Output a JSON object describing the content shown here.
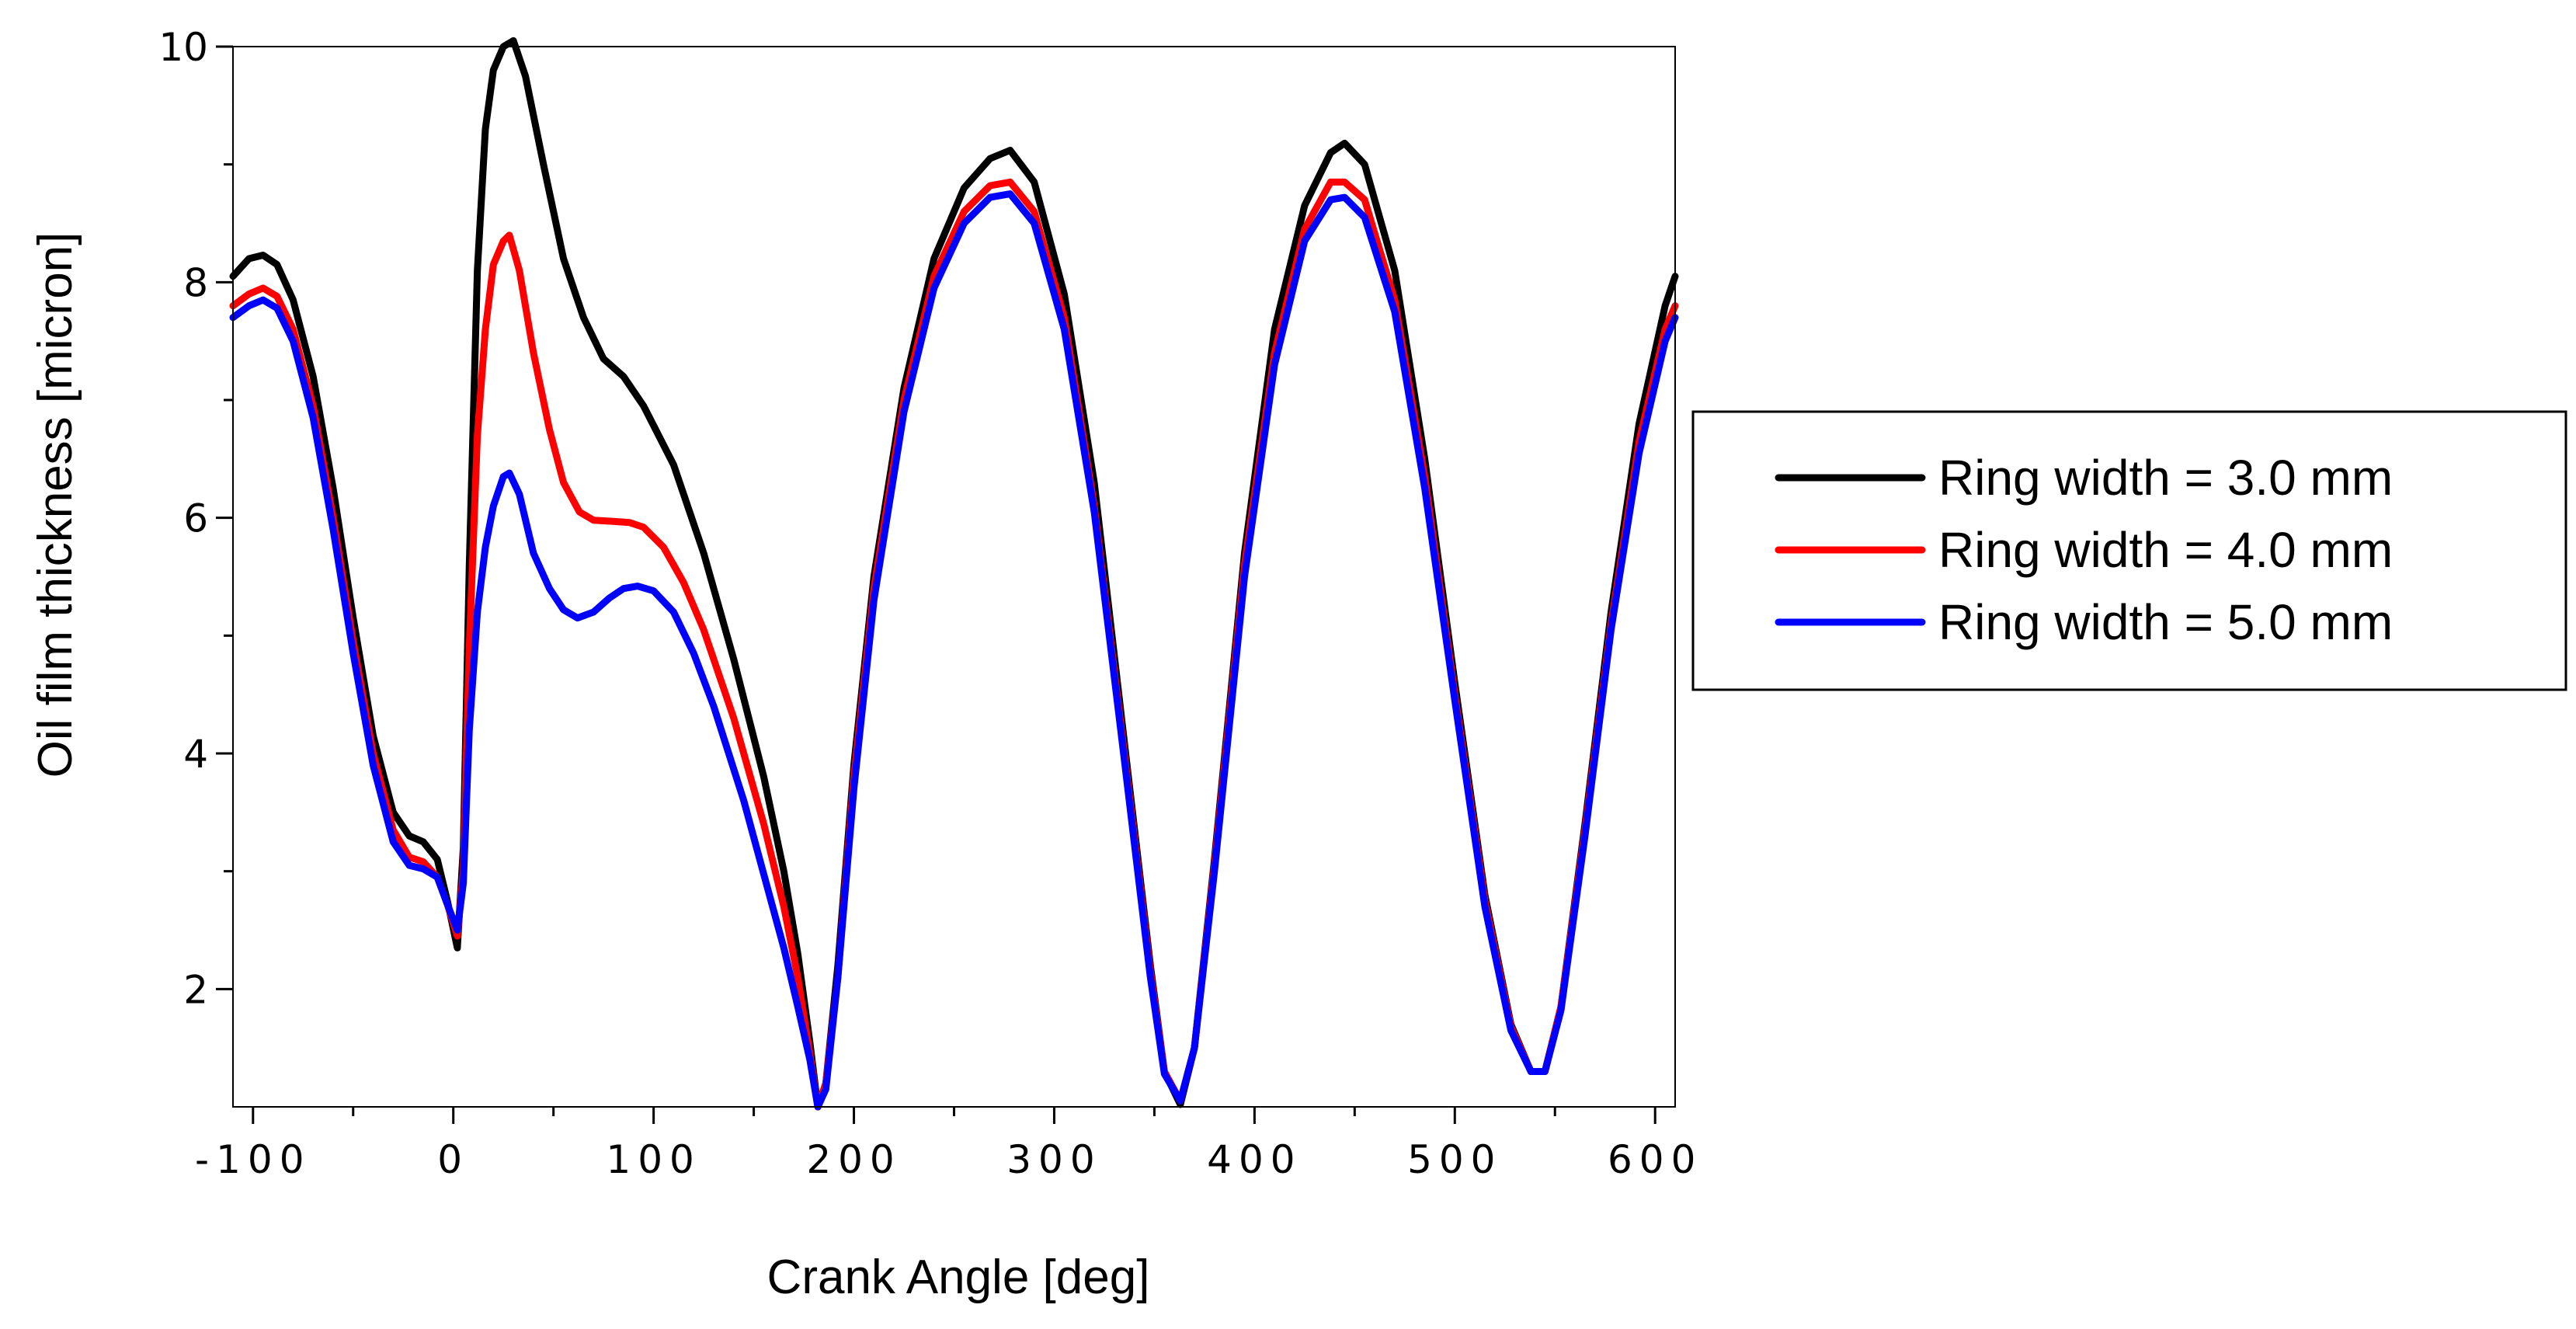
{
  "chart_data": {
    "type": "line",
    "xlabel": "Crank Angle [deg]",
    "ylabel": "Oil film thickness [micron]",
    "xlim": [
      -110,
      610
    ],
    "ylim": [
      1,
      10
    ],
    "x_ticks": [
      -100,
      0,
      100,
      200,
      300,
      400,
      500,
      600
    ],
    "x_tick_labels": [
      "-100",
      "0",
      "100",
      "200",
      "300",
      "400",
      "500",
      "600"
    ],
    "x_minor_ticks": [
      -50,
      50,
      150,
      250,
      350,
      450,
      550
    ],
    "y_ticks": [
      2,
      4,
      6,
      8,
      10
    ],
    "y_tick_labels": [
      "2",
      "4",
      "6",
      "8",
      "10"
    ],
    "y_minor_ticks": [
      3,
      5,
      7,
      9
    ],
    "grid": false,
    "legend_position": "right, outside plot",
    "series": [
      {
        "name": "Ring width = 3.0 mm",
        "color": "#000000",
        "points": [
          [
            -110,
            8.05
          ],
          [
            -102,
            8.2
          ],
          [
            -95,
            8.23
          ],
          [
            -88,
            8.15
          ],
          [
            -80,
            7.85
          ],
          [
            -70,
            7.2
          ],
          [
            -60,
            6.25
          ],
          [
            -50,
            5.15
          ],
          [
            -40,
            4.15
          ],
          [
            -30,
            3.5
          ],
          [
            -22,
            3.3
          ],
          [
            -15,
            3.25
          ],
          [
            -8,
            3.1
          ],
          [
            -3,
            2.75
          ],
          [
            2,
            2.35
          ],
          [
            5,
            3.2
          ],
          [
            8,
            5.6
          ],
          [
            12,
            8.1
          ],
          [
            16,
            9.3
          ],
          [
            20,
            9.8
          ],
          [
            25,
            10.0
          ],
          [
            30,
            10.05
          ],
          [
            36,
            9.75
          ],
          [
            45,
            9.0
          ],
          [
            55,
            8.2
          ],
          [
            65,
            7.7
          ],
          [
            75,
            7.35
          ],
          [
            85,
            7.2
          ],
          [
            95,
            6.95
          ],
          [
            110,
            6.45
          ],
          [
            125,
            5.7
          ],
          [
            140,
            4.8
          ],
          [
            155,
            3.8
          ],
          [
            165,
            3.0
          ],
          [
            172,
            2.3
          ],
          [
            178,
            1.55
          ],
          [
            182,
            1.0
          ],
          [
            186,
            1.2
          ],
          [
            192,
            2.2
          ],
          [
            200,
            3.9
          ],
          [
            210,
            5.5
          ],
          [
            225,
            7.1
          ],
          [
            240,
            8.2
          ],
          [
            255,
            8.8
          ],
          [
            268,
            9.05
          ],
          [
            278,
            9.12
          ],
          [
            290,
            8.85
          ],
          [
            305,
            7.9
          ],
          [
            320,
            6.3
          ],
          [
            335,
            4.1
          ],
          [
            348,
            2.2
          ],
          [
            355,
            1.3
          ],
          [
            363,
            1.02
          ],
          [
            370,
            1.5
          ],
          [
            380,
            3.1
          ],
          [
            395,
            5.7
          ],
          [
            410,
            7.6
          ],
          [
            425,
            8.65
          ],
          [
            438,
            9.1
          ],
          [
            445,
            9.18
          ],
          [
            455,
            9.0
          ],
          [
            470,
            8.1
          ],
          [
            485,
            6.5
          ],
          [
            500,
            4.6
          ],
          [
            515,
            2.8
          ],
          [
            528,
            1.7
          ],
          [
            538,
            1.3
          ],
          [
            545,
            1.3
          ],
          [
            553,
            1.85
          ],
          [
            565,
            3.4
          ],
          [
            578,
            5.2
          ],
          [
            592,
            6.8
          ],
          [
            605,
            7.8
          ],
          [
            610,
            8.05
          ]
        ]
      },
      {
        "name": "Ring width = 4.0 mm",
        "color": "#ff0000",
        "points": [
          [
            -110,
            7.8
          ],
          [
            -102,
            7.9
          ],
          [
            -95,
            7.95
          ],
          [
            -88,
            7.88
          ],
          [
            -80,
            7.6
          ],
          [
            -70,
            6.95
          ],
          [
            -60,
            6.0
          ],
          [
            -50,
            4.95
          ],
          [
            -40,
            4.0
          ],
          [
            -30,
            3.35
          ],
          [
            -22,
            3.12
          ],
          [
            -15,
            3.08
          ],
          [
            -8,
            2.95
          ],
          [
            -3,
            2.72
          ],
          [
            2,
            2.45
          ],
          [
            5,
            3.0
          ],
          [
            8,
            4.9
          ],
          [
            12,
            6.7
          ],
          [
            16,
            7.6
          ],
          [
            20,
            8.15
          ],
          [
            25,
            8.35
          ],
          [
            28,
            8.4
          ],
          [
            33,
            8.1
          ],
          [
            40,
            7.4
          ],
          [
            48,
            6.75
          ],
          [
            55,
            6.3
          ],
          [
            63,
            6.05
          ],
          [
            70,
            5.98
          ],
          [
            80,
            5.97
          ],
          [
            88,
            5.96
          ],
          [
            95,
            5.92
          ],
          [
            105,
            5.75
          ],
          [
            115,
            5.45
          ],
          [
            125,
            5.05
          ],
          [
            140,
            4.3
          ],
          [
            155,
            3.4
          ],
          [
            165,
            2.7
          ],
          [
            172,
            2.1
          ],
          [
            178,
            1.45
          ],
          [
            182,
            1.0
          ],
          [
            186,
            1.2
          ],
          [
            192,
            2.1
          ],
          [
            200,
            3.8
          ],
          [
            210,
            5.4
          ],
          [
            225,
            7.0
          ],
          [
            240,
            8.05
          ],
          [
            255,
            8.6
          ],
          [
            268,
            8.82
          ],
          [
            278,
            8.85
          ],
          [
            290,
            8.6
          ],
          [
            305,
            7.7
          ],
          [
            320,
            6.1
          ],
          [
            335,
            4.0
          ],
          [
            348,
            2.15
          ],
          [
            355,
            1.3
          ],
          [
            363,
            1.05
          ],
          [
            370,
            1.5
          ],
          [
            380,
            3.05
          ],
          [
            395,
            5.6
          ],
          [
            410,
            7.4
          ],
          [
            425,
            8.45
          ],
          [
            438,
            8.85
          ],
          [
            445,
            8.85
          ],
          [
            455,
            8.7
          ],
          [
            470,
            7.85
          ],
          [
            485,
            6.35
          ],
          [
            500,
            4.5
          ],
          [
            515,
            2.75
          ],
          [
            528,
            1.68
          ],
          [
            538,
            1.3
          ],
          [
            545,
            1.3
          ],
          [
            553,
            1.85
          ],
          [
            565,
            3.35
          ],
          [
            578,
            5.1
          ],
          [
            592,
            6.65
          ],
          [
            605,
            7.6
          ],
          [
            610,
            7.8
          ]
        ]
      },
      {
        "name": "Ring width = 5.0 mm",
        "color": "#0000ff",
        "points": [
          [
            -110,
            7.7
          ],
          [
            -102,
            7.8
          ],
          [
            -95,
            7.85
          ],
          [
            -88,
            7.78
          ],
          [
            -80,
            7.5
          ],
          [
            -70,
            6.85
          ],
          [
            -60,
            5.9
          ],
          [
            -50,
            4.85
          ],
          [
            -40,
            3.9
          ],
          [
            -30,
            3.25
          ],
          [
            -22,
            3.05
          ],
          [
            -15,
            3.02
          ],
          [
            -8,
            2.95
          ],
          [
            -3,
            2.72
          ],
          [
            2,
            2.5
          ],
          [
            5,
            2.9
          ],
          [
            8,
            4.2
          ],
          [
            12,
            5.2
          ],
          [
            16,
            5.75
          ],
          [
            20,
            6.1
          ],
          [
            25,
            6.35
          ],
          [
            28,
            6.38
          ],
          [
            33,
            6.2
          ],
          [
            40,
            5.7
          ],
          [
            48,
            5.4
          ],
          [
            55,
            5.22
          ],
          [
            62,
            5.15
          ],
          [
            70,
            5.2
          ],
          [
            78,
            5.32
          ],
          [
            85,
            5.4
          ],
          [
            92,
            5.42
          ],
          [
            100,
            5.38
          ],
          [
            110,
            5.2
          ],
          [
            120,
            4.85
          ],
          [
            130,
            4.4
          ],
          [
            145,
            3.6
          ],
          [
            157,
            2.85
          ],
          [
            165,
            2.35
          ],
          [
            172,
            1.85
          ],
          [
            178,
            1.4
          ],
          [
            182,
            1.0
          ],
          [
            186,
            1.15
          ],
          [
            192,
            2.1
          ],
          [
            200,
            3.7
          ],
          [
            210,
            5.3
          ],
          [
            225,
            6.9
          ],
          [
            240,
            7.95
          ],
          [
            255,
            8.5
          ],
          [
            268,
            8.72
          ],
          [
            278,
            8.75
          ],
          [
            290,
            8.5
          ],
          [
            305,
            7.6
          ],
          [
            320,
            6.05
          ],
          [
            335,
            3.95
          ],
          [
            348,
            2.1
          ],
          [
            355,
            1.28
          ],
          [
            363,
            1.05
          ],
          [
            370,
            1.5
          ],
          [
            380,
            3.0
          ],
          [
            395,
            5.5
          ],
          [
            410,
            7.3
          ],
          [
            425,
            8.35
          ],
          [
            438,
            8.7
          ],
          [
            445,
            8.72
          ],
          [
            455,
            8.55
          ],
          [
            470,
            7.75
          ],
          [
            485,
            6.25
          ],
          [
            500,
            4.45
          ],
          [
            515,
            2.7
          ],
          [
            528,
            1.65
          ],
          [
            538,
            1.3
          ],
          [
            545,
            1.3
          ],
          [
            553,
            1.82
          ],
          [
            565,
            3.3
          ],
          [
            578,
            5.05
          ],
          [
            592,
            6.55
          ],
          [
            605,
            7.5
          ],
          [
            610,
            7.7
          ]
        ]
      }
    ]
  }
}
